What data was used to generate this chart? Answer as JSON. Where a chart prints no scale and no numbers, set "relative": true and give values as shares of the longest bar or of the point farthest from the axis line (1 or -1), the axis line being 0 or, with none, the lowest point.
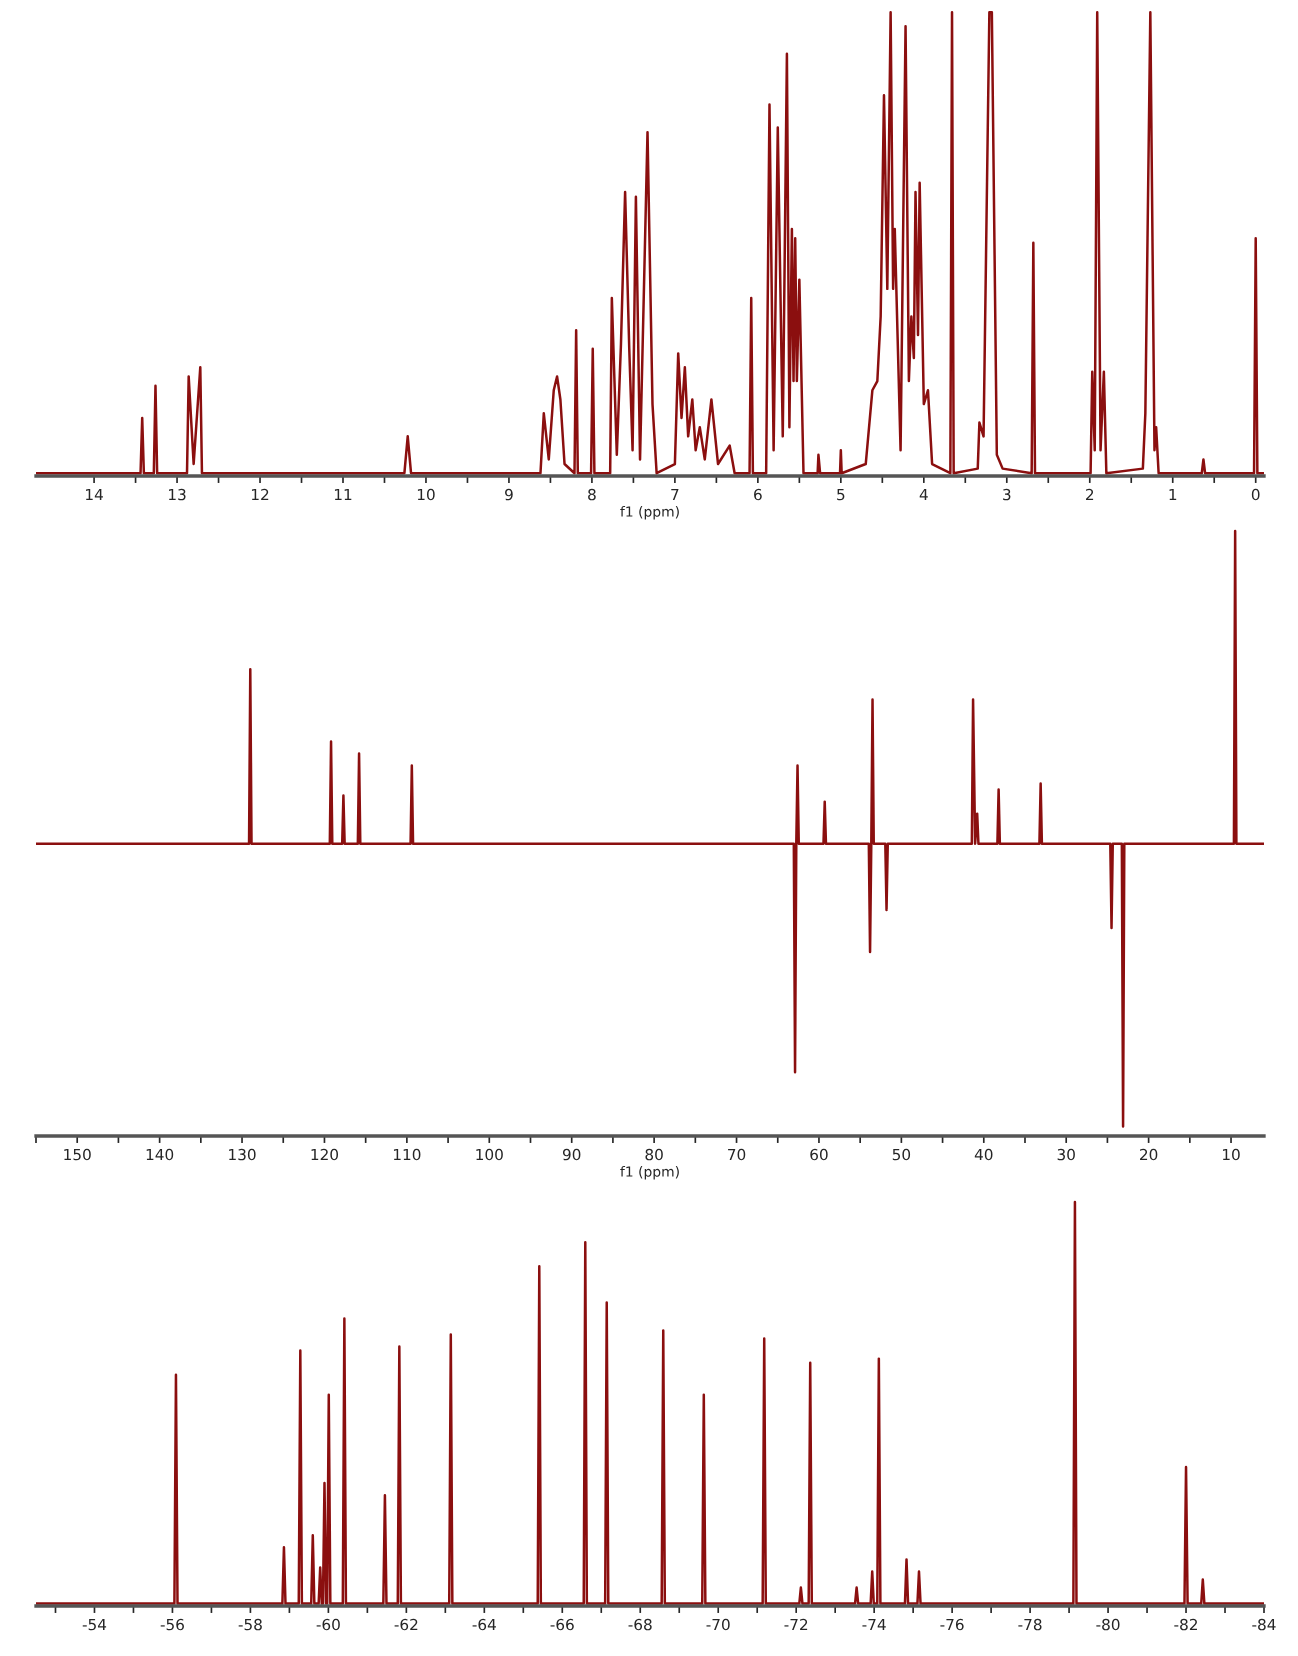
{
  "chart_data": [
    {
      "type": "line",
      "relative": true,
      "xlabel": "f1 (ppm)",
      "xlim": [
        14.7,
        -0.1
      ],
      "tick_labels": "x",
      "xticks": [
        14,
        {
          "value": 13.5,
          "label": null
        },
        13,
        {
          "value": 12.5,
          "label": null
        },
        12,
        {
          "value": 11.5,
          "label": null
        },
        11,
        {
          "value": 10.5,
          "label": null
        },
        10,
        {
          "value": 9.5,
          "label": null
        },
        9,
        {
          "value": 8.5,
          "label": null
        },
        8,
        {
          "value": 7.5,
          "label": null
        },
        7,
        {
          "value": 6.5,
          "label": null
        },
        6,
        {
          "value": 5.5,
          "label": null
        },
        5,
        {
          "value": 4.5,
          "label": null
        },
        4,
        {
          "value": 3.5,
          "label": null
        },
        3,
        {
          "value": 2.5,
          "label": null
        },
        2,
        {
          "value": 1.5,
          "label": null
        },
        1,
        {
          "value": 0.5,
          "label": null
        },
        0
      ],
      "series": [
        {
          "color": "#8b0f0f",
          "x": [
            14.7,
            13.44,
            13.42,
            13.4,
            13.28,
            13.26,
            13.24,
            12.88,
            12.86,
            12.8,
            12.72,
            12.7,
            10.26,
            10.22,
            10.18,
            8.62,
            8.58,
            8.52,
            8.46,
            8.42,
            8.38,
            8.33,
            8.21,
            8.19,
            8.17,
            8.01,
            7.99,
            7.97,
            7.78,
            7.76,
            7.7,
            7.65,
            7.6,
            7.55,
            7.51,
            7.47,
            7.42,
            7.33,
            7.27,
            7.22,
            7.0,
            6.96,
            6.92,
            6.88,
            6.84,
            6.79,
            6.75,
            6.7,
            6.64,
            6.56,
            6.48,
            6.34,
            6.28,
            6.1,
            6.08,
            6.06,
            5.9,
            5.86,
            5.81,
            5.76,
            5.7,
            5.65,
            5.62,
            5.59,
            5.57,
            5.55,
            5.53,
            5.5,
            5.45,
            5.28,
            5.27,
            5.25,
            5.01,
            5.0,
            4.99,
            4.7,
            4.62,
            4.56,
            4.52,
            4.48,
            4.44,
            4.4,
            4.37,
            4.35,
            4.28,
            4.22,
            4.18,
            4.15,
            4.12,
            4.1,
            4.07,
            4.05,
            4.0,
            3.95,
            3.9,
            3.68,
            3.66,
            3.64,
            3.35,
            3.33,
            3.28,
            3.21,
            3.18,
            3.12,
            3.05,
            2.7,
            2.68,
            2.66,
            1.99,
            1.97,
            1.94,
            1.91,
            1.87,
            1.83,
            1.8,
            1.36,
            1.33,
            1.27,
            1.22,
            1.2,
            1.17,
            0.65,
            0.63,
            0.61,
            0.02,
            0.0,
            -0.02,
            -0.1
          ],
          "values": [
            0,
            0,
            0.12,
            0,
            0,
            0.19,
            0,
            0,
            0.21,
            0.02,
            0.23,
            0,
            0,
            0.08,
            0,
            0,
            0.13,
            0.03,
            0.18,
            0.21,
            0.16,
            0.02,
            0,
            0.31,
            0,
            0,
            0.27,
            0,
            0,
            0.38,
            0.04,
            0.28,
            0.61,
            0.27,
            0.05,
            0.6,
            0.03,
            0.74,
            0.15,
            0,
            0.02,
            0.26,
            0.12,
            0.23,
            0.08,
            0.16,
            0.05,
            0.1,
            0.03,
            0.16,
            0.02,
            0.06,
            0,
            0,
            0.38,
            0,
            0,
            0.8,
            0.05,
            0.75,
            0.08,
            0.91,
            0.1,
            0.53,
            0.2,
            0.51,
            0.2,
            0.42,
            0,
            0,
            0.04,
            0,
            0,
            0.05,
            0,
            0.02,
            0.18,
            0.2,
            0.34,
            0.82,
            0.4,
            1.0,
            0.4,
            0.53,
            0.05,
            0.97,
            0.2,
            0.34,
            0.25,
            0.61,
            0.3,
            0.63,
            0.15,
            0.18,
            0.02,
            0,
            1.0,
            0,
            0.01,
            0.11,
            0.08,
            1.0,
            1.0,
            0.04,
            0.01,
            0,
            0.5,
            0,
            0,
            0.22,
            0.05,
            1.0,
            0.05,
            0.22,
            0,
            0.01,
            0.13,
            1.0,
            0.05,
            0.1,
            0,
            0,
            0.03,
            0,
            0,
            0.51,
            0,
            0
          ]
        }
      ]
    },
    {
      "type": "line",
      "relative": true,
      "xlabel": "f1 (ppm)",
      "xlim": [
        155,
        6
      ],
      "tick_labels": "x",
      "xticks": [
        {
          "value": 155,
          "label": null
        },
        150,
        {
          "value": 145,
          "label": null
        },
        140,
        {
          "value": 135,
          "label": null
        },
        130,
        {
          "value": 125,
          "label": null
        },
        120,
        {
          "value": 115,
          "label": null
        },
        110,
        {
          "value": 105,
          "label": null
        },
        100,
        {
          "value": 95,
          "label": null
        },
        90,
        {
          "value": 85,
          "label": null
        },
        80,
        {
          "value": 75,
          "label": null
        },
        70,
        {
          "value": 65,
          "label": null
        },
        60,
        {
          "value": 55,
          "label": null
        },
        50,
        {
          "value": 45,
          "label": null
        },
        40,
        {
          "value": 35,
          "label": null
        },
        30,
        {
          "value": 25,
          "label": null
        },
        20,
        {
          "value": 15,
          "label": null
        },
        10
      ],
      "series": [
        {
          "color": "#8b0f0f",
          "x": [
            155,
            129.15,
            129.0,
            128.85,
            119.35,
            119.2,
            119.05,
            117.85,
            117.7,
            117.55,
            115.95,
            115.8,
            115.65,
            109.55,
            109.4,
            109.25,
            63.05,
            62.9,
            62.75,
            62.6,
            62.45,
            59.45,
            59.3,
            59.15,
            53.95,
            53.8,
            53.65,
            53.5,
            53.35,
            51.95,
            51.8,
            51.65,
            41.45,
            41.3,
            41.05,
            40.8,
            40.65,
            38.35,
            38.2,
            38.05,
            33.25,
            33.1,
            32.95,
            24.65,
            24.5,
            24.35,
            23.25,
            23.1,
            22.95,
            9.65,
            9.5,
            9.35,
            6
          ],
          "values": [
            0.48,
            0.48,
            0.77,
            0.48,
            0.48,
            0.65,
            0.48,
            0.48,
            0.56,
            0.48,
            0.48,
            0.63,
            0.48,
            0.48,
            0.61,
            0.48,
            0.48,
            0.1,
            0.48,
            0.61,
            0.48,
            0.48,
            0.55,
            0.48,
            0.48,
            0.3,
            0.48,
            0.72,
            0.48,
            0.48,
            0.37,
            0.48,
            0.48,
            0.72,
            0.48,
            0.53,
            0.48,
            0.48,
            0.57,
            0.48,
            0.48,
            0.58,
            0.48,
            0.48,
            0.34,
            0.48,
            0.48,
            0.01,
            0.48,
            0.48,
            1.0,
            0.48,
            0.48
          ]
        }
      ]
    },
    {
      "type": "line",
      "relative": true,
      "xlim": [
        -52.5,
        -84
      ],
      "tick_labels": "x",
      "xticks": [
        {
          "value": -53,
          "label": null
        },
        -54,
        {
          "value": -55,
          "label": null
        },
        -56,
        {
          "value": -57,
          "label": null
        },
        -58,
        {
          "value": -59,
          "label": null
        },
        -60,
        {
          "value": -61,
          "label": null
        },
        -62,
        {
          "value": -63,
          "label": null
        },
        -64,
        {
          "value": -65,
          "label": null
        },
        -66,
        {
          "value": -67,
          "label": null
        },
        -68,
        {
          "value": -69,
          "label": null
        },
        -70,
        {
          "value": -71,
          "label": null
        },
        -72,
        {
          "value": -73,
          "label": null
        },
        -74,
        {
          "value": -75,
          "label": null
        },
        -76,
        {
          "value": -77,
          "label": null
        },
        -78,
        {
          "value": -79,
          "label": null
        },
        -80,
        {
          "value": -81,
          "label": null
        },
        -82,
        {
          "value": -83,
          "label": null
        },
        -84
      ],
      "series": [
        {
          "color": "#8b0f0f",
          "x": [
            -52.5,
            -56.05,
            -56.09,
            -56.13,
            -58.82,
            -58.86,
            -58.9,
            -59.24,
            -59.28,
            -59.32,
            -59.56,
            -59.6,
            -59.64,
            -59.75,
            -59.79,
            -59.83,
            -59.86,
            -59.9,
            -59.94,
            -59.97,
            -60.01,
            -60.05,
            -60.37,
            -60.41,
            -60.45,
            -61.41,
            -61.45,
            -61.49,
            -61.78,
            -61.82,
            -61.86,
            -63.1,
            -63.14,
            -63.18,
            -65.37,
            -65.41,
            -65.45,
            -66.55,
            -66.59,
            -66.63,
            -67.1,
            -67.14,
            -67.18,
            -68.55,
            -68.59,
            -68.63,
            -69.59,
            -69.63,
            -69.67,
            -71.14,
            -71.18,
            -71.22,
            -72.08,
            -72.12,
            -72.16,
            -72.32,
            -72.36,
            -72.4,
            -73.51,
            -73.55,
            -73.59,
            -73.91,
            -73.95,
            -73.99,
            -74.08,
            -74.12,
            -74.16,
            -74.79,
            -74.83,
            -74.87,
            -75.11,
            -75.15,
            -75.19,
            -79.11,
            -79.15,
            -79.19,
            -81.96,
            -82.0,
            -82.04,
            -82.39,
            -82.43,
            -82.47,
            -84
          ],
          "values": [
            0,
            0,
            0.57,
            0,
            0,
            0.14,
            0,
            0,
            0.63,
            0,
            0,
            0.17,
            0,
            0,
            0.09,
            0,
            0,
            0.3,
            0,
            0,
            0.52,
            0,
            0,
            0.71,
            0,
            0,
            0.27,
            0,
            0,
            0.64,
            0,
            0,
            0.67,
            0,
            0,
            0.84,
            0,
            0,
            0.9,
            0,
            0,
            0.75,
            0,
            0,
            0.68,
            0,
            0,
            0.52,
            0,
            0,
            0.66,
            0,
            0,
            0.04,
            0,
            0,
            0.6,
            0,
            0,
            0.04,
            0,
            0,
            0.08,
            0,
            0,
            0.61,
            0,
            0,
            0.11,
            0,
            0,
            0.08,
            0,
            0,
            1.0,
            0,
            0,
            0.34,
            0,
            0,
            0.06,
            0,
            0
          ]
        }
      ]
    }
  ]
}
